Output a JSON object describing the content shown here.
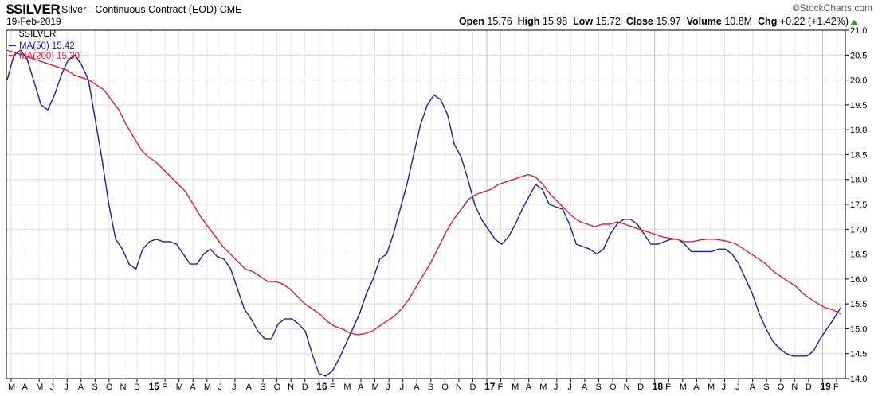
{
  "header": {
    "symbol": "$SILVER",
    "description": "Silver - Continuous Contract (EOD)",
    "exchange": "CME",
    "date": "19-Feb-2019",
    "watermark": "StockCharts.com",
    "open_label": "Open",
    "open": "15.76",
    "high_label": "High",
    "high": "15.98",
    "low_label": "Low",
    "low": "15.72",
    "close_label": "Close",
    "close": "15.97",
    "volume_label": "Volume",
    "volume": "10.8M",
    "chg_label": "Chg",
    "chg": "+0.22 (+1.42%)",
    "chg_color": "#2a9a2a"
  },
  "legend": {
    "symbol": "$SILVER",
    "ma50": "MA(50) 15.42",
    "ma200": "MA(200) 15.30"
  },
  "chart_data": {
    "type": "line",
    "ylim": [
      14.0,
      21.0
    ],
    "yticks": [
      "14.0",
      "14.5",
      "15.0",
      "15.5",
      "16.0",
      "16.5",
      "17.0",
      "17.5",
      "18.0",
      "18.5",
      "19.0",
      "19.5",
      "20.0",
      "20.5",
      "21.0"
    ],
    "xticks": [
      "M",
      "A",
      "M",
      "J",
      "J",
      "A",
      "S",
      "O",
      "N",
      "D",
      "15",
      "F",
      "M",
      "A",
      "M",
      "J",
      "J",
      "A",
      "S",
      "O",
      "N",
      "D",
      "16",
      "F",
      "M",
      "A",
      "M",
      "J",
      "J",
      "A",
      "S",
      "O",
      "N",
      "D",
      "17",
      "F",
      "M",
      "A",
      "M",
      "J",
      "J",
      "A",
      "S",
      "O",
      "N",
      "D",
      "18",
      "F",
      "M",
      "A",
      "M",
      "J",
      "J",
      "A",
      "S",
      "O",
      "N",
      "D",
      "19",
      "F"
    ],
    "grid": true,
    "series": [
      {
        "name": "MA(50) 15.42",
        "color": "#1f1f8f",
        "values": [
          20.0,
          20.5,
          20.6,
          20.4,
          19.95,
          19.5,
          19.4,
          19.7,
          20.1,
          20.4,
          20.5,
          20.3,
          20.0,
          19.2,
          18.4,
          17.5,
          16.8,
          16.6,
          16.3,
          16.2,
          16.6,
          16.75,
          16.8,
          16.75,
          16.75,
          16.7,
          16.5,
          16.3,
          16.3,
          16.5,
          16.6,
          16.45,
          16.4,
          16.2,
          15.8,
          15.4,
          15.2,
          14.95,
          14.8,
          14.8,
          15.1,
          15.2,
          15.2,
          15.1,
          14.95,
          14.5,
          14.1,
          14.05,
          14.15,
          14.4,
          14.7,
          15.0,
          15.3,
          15.7,
          16.0,
          16.4,
          16.5,
          16.9,
          17.4,
          17.9,
          18.5,
          19.1,
          19.5,
          19.7,
          19.6,
          19.3,
          18.7,
          18.45,
          18.0,
          17.5,
          17.2,
          17.0,
          16.8,
          16.7,
          16.85,
          17.1,
          17.4,
          17.65,
          17.9,
          17.8,
          17.5,
          17.45,
          17.4,
          17.1,
          16.7,
          16.65,
          16.6,
          16.5,
          16.6,
          16.9,
          17.1,
          17.2,
          17.2,
          17.1,
          16.9,
          16.7,
          16.7,
          16.75,
          16.8,
          16.8,
          16.7,
          16.55,
          16.55,
          16.55,
          16.55,
          16.6,
          16.6,
          16.5,
          16.3,
          16.0,
          15.7,
          15.3,
          15.0,
          14.75,
          14.6,
          14.5,
          14.45,
          14.45,
          14.45,
          14.55,
          14.8,
          15.0,
          15.2,
          15.42
        ]
      },
      {
        "name": "MA(200) 15.30",
        "color": "#d6203a",
        "values": [
          20.6,
          20.55,
          20.5,
          20.45,
          20.4,
          20.35,
          20.3,
          20.25,
          20.2,
          20.1,
          20.05,
          20.0,
          19.9,
          19.8,
          19.6,
          19.4,
          19.1,
          18.85,
          18.6,
          18.45,
          18.35,
          18.2,
          18.05,
          17.9,
          17.75,
          17.5,
          17.25,
          17.05,
          16.85,
          16.65,
          16.5,
          16.35,
          16.2,
          16.15,
          16.05,
          15.95,
          15.95,
          15.9,
          15.8,
          15.65,
          15.5,
          15.4,
          15.3,
          15.15,
          15.05,
          15.0,
          14.92,
          14.88,
          14.9,
          14.95,
          15.05,
          15.15,
          15.25,
          15.4,
          15.6,
          15.85,
          16.1,
          16.35,
          16.65,
          16.95,
          17.2,
          17.4,
          17.6,
          17.7,
          17.75,
          17.8,
          17.9,
          17.95,
          18.0,
          18.05,
          18.1,
          18.05,
          17.9,
          17.7,
          17.55,
          17.4,
          17.25,
          17.15,
          17.1,
          17.05,
          17.1,
          17.1,
          17.15,
          17.1,
          17.05,
          17.0,
          16.95,
          16.9,
          16.85,
          16.82,
          16.8,
          16.75,
          16.75,
          16.78,
          16.8,
          16.8,
          16.78,
          16.75,
          16.7,
          16.6,
          16.5,
          16.4,
          16.3,
          16.15,
          16.05,
          15.95,
          15.85,
          15.7,
          15.6,
          15.5,
          15.42,
          15.38,
          15.3
        ]
      }
    ]
  }
}
